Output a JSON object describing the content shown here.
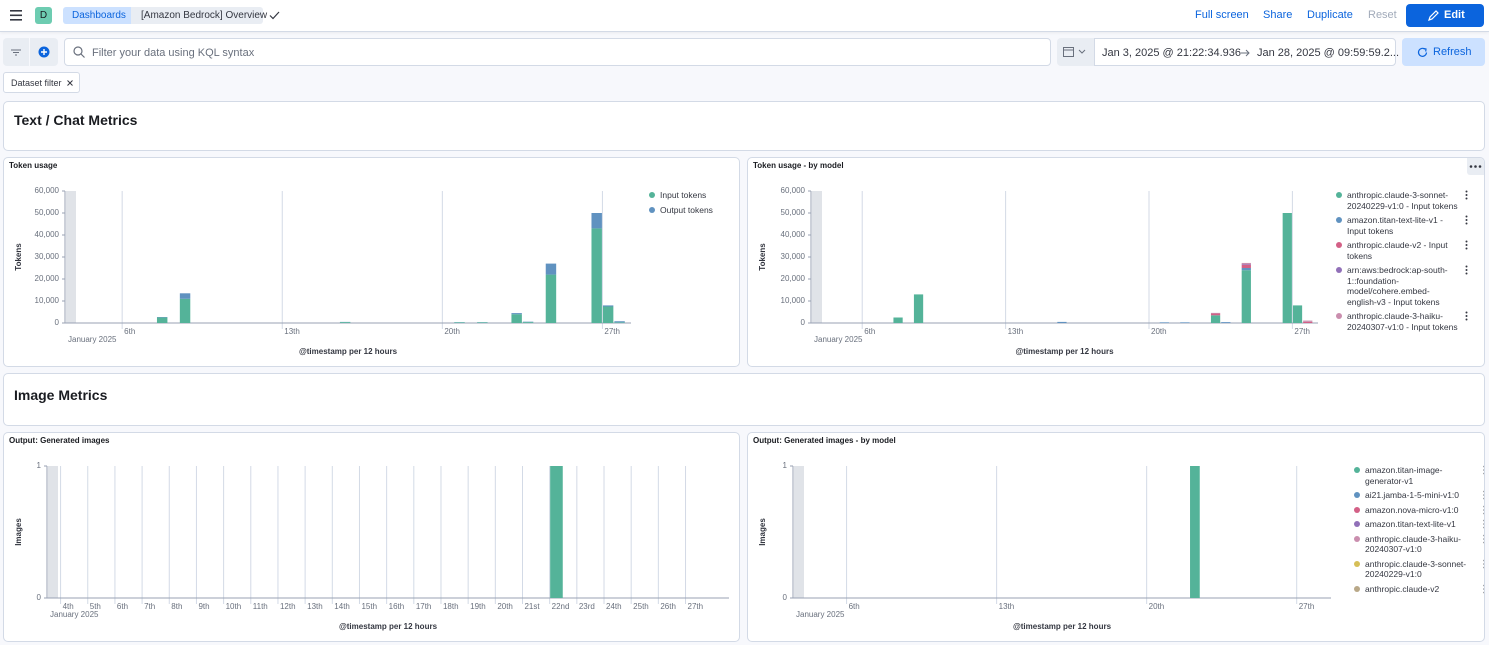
{
  "header": {
    "space_initial": "D",
    "breadcrumbs": [
      "Dashboards",
      "[Amazon Bedrock] Overview"
    ],
    "actions": [
      "Full screen",
      "Share",
      "Duplicate",
      "Reset"
    ],
    "edit": "Edit"
  },
  "query_bar": {
    "placeholder": "Filter your data using KQL syntax",
    "start": "Jan 3, 2025 @ 21:22:34.936",
    "end": "Jan 28, 2025 @ 09:59:59.2...",
    "refresh": "Refresh"
  },
  "filters": [
    "Dataset filter"
  ],
  "sections": [
    "Text / Chat Metrics",
    "Image Metrics"
  ],
  "chart_data": [
    {
      "type": "bar",
      "stacked": true,
      "title": "Token usage",
      "xlabel": "@timestamp per 12 hours",
      "ylabel": "Tokens",
      "x_caption": "January 2025",
      "x": [
        7.5,
        8.5,
        15.5,
        20.5,
        21.5,
        23,
        23.5,
        24.5,
        26.5,
        27,
        27.5
      ],
      "xlim": [
        3.5,
        28.25
      ],
      "xticks": [
        {
          "value": 6,
          "label": "6th"
        },
        {
          "value": 13,
          "label": "13th"
        },
        {
          "value": 20,
          "label": "20th"
        },
        {
          "value": 27,
          "label": "27th"
        }
      ],
      "ylim": [
        0,
        60000
      ],
      "yticks": [
        0,
        {
          "value": 10000,
          "label": "10,000"
        },
        {
          "value": 20000,
          "label": "20,000"
        },
        {
          "value": 30000,
          "label": "30,000"
        },
        {
          "value": 40000,
          "label": "40,000"
        },
        {
          "value": 50000,
          "label": "50,000"
        },
        {
          "value": 60000,
          "label": "60,000"
        }
      ],
      "legend": "right",
      "series": [
        {
          "name": "Input tokens",
          "color": "#54b399",
          "values": [
            2500,
            11000,
            400,
            300,
            300,
            4000,
            400,
            22000,
            43000,
            7500,
            300
          ]
        },
        {
          "name": "Output tokens",
          "color": "#6092c0",
          "values": [
            200,
            2500,
            100,
            100,
            100,
            500,
            200,
            5000,
            7000,
            500,
            500
          ]
        }
      ]
    },
    {
      "type": "bar",
      "stacked": true,
      "title": "Token usage - by model",
      "xlabel": "@timestamp per 12 hours",
      "ylabel": "Tokens",
      "x_caption": "January 2025",
      "x": [
        7.5,
        8.5,
        15.5,
        20.5,
        21.5,
        23,
        23.5,
        24.5,
        26.5,
        27,
        27.5
      ],
      "xlim": [
        3.5,
        28.25
      ],
      "xticks": [
        {
          "value": 6,
          "label": "6th"
        },
        {
          "value": 13,
          "label": "13th"
        },
        {
          "value": 20,
          "label": "20th"
        },
        {
          "value": 27,
          "label": "27th"
        }
      ],
      "ylim": [
        0,
        60000
      ],
      "yticks": [
        0,
        {
          "value": 10000,
          "label": "10,000"
        },
        {
          "value": 20000,
          "label": "20,000"
        },
        {
          "value": 30000,
          "label": "30,000"
        },
        {
          "value": 40000,
          "label": "40,000"
        },
        {
          "value": 50000,
          "label": "50,000"
        },
        {
          "value": 60000,
          "label": "60,000"
        }
      ],
      "legend": "right",
      "series": [
        {
          "name": "anthropic.claude-3-sonnet-20240229-v1:0 - Input tokens",
          "color": "#54b399",
          "values": [
            2500,
            13000,
            null,
            null,
            null,
            3500,
            null,
            24000,
            50000,
            8000,
            null
          ]
        },
        {
          "name": "amazon.titan-text-lite-v1 - Input tokens",
          "color": "#6092c0",
          "values": [
            null,
            null,
            500,
            300,
            300,
            null,
            400,
            1000,
            null,
            null,
            null
          ]
        },
        {
          "name": "anthropic.claude-v2 - Input tokens",
          "color": "#d36086",
          "values": [
            null,
            null,
            null,
            null,
            null,
            800,
            null,
            1500,
            null,
            null,
            500
          ]
        },
        {
          "name": "arn:aws:bedrock:ap-south-1::foundation-model/cohere.embed-english-v3 - Input tokens",
          "color": "#9170b8",
          "values": [
            null,
            null,
            null,
            null,
            null,
            null,
            null,
            300,
            null,
            null,
            null
          ]
        },
        {
          "name": "anthropic.claude-3-haiku-20240307-v1:0 - Input tokens",
          "color": "#ca8eae",
          "values": [
            null,
            null,
            null,
            null,
            null,
            300,
            null,
            500,
            null,
            null,
            600
          ]
        }
      ]
    },
    {
      "type": "bar",
      "stacked": true,
      "title": "Output: Generated images",
      "xlabel": "@timestamp per 12 hours",
      "ylabel": "Images",
      "x_caption": "January 2025",
      "x": [
        22
      ],
      "values": [
        1
      ],
      "color": "#54b399",
      "xlim": [
        3.5,
        28.6
      ],
      "xticks": [
        {
          "value": 4,
          "label": "4th"
        },
        {
          "value": 5,
          "label": "5th"
        },
        {
          "value": 6,
          "label": "6th"
        },
        {
          "value": 7,
          "label": "7th"
        },
        {
          "value": 8,
          "label": "8th"
        },
        {
          "value": 9,
          "label": "9th"
        },
        {
          "value": 10,
          "label": "10th"
        },
        {
          "value": 11,
          "label": "11th"
        },
        {
          "value": 12,
          "label": "12th"
        },
        {
          "value": 13,
          "label": "13th"
        },
        {
          "value": 14,
          "label": "14th"
        },
        {
          "value": 15,
          "label": "15th"
        },
        {
          "value": 16,
          "label": "16th"
        },
        {
          "value": 17,
          "label": "17th"
        },
        {
          "value": 18,
          "label": "18th"
        },
        {
          "value": 19,
          "label": "19th"
        },
        {
          "value": 20,
          "label": "20th"
        },
        {
          "value": 21,
          "label": "21st"
        },
        {
          "value": 22,
          "label": "22nd"
        },
        {
          "value": 23,
          "label": "23rd"
        },
        {
          "value": 24,
          "label": "24th"
        },
        {
          "value": 25,
          "label": "25th"
        },
        {
          "value": 26,
          "label": "26th"
        },
        {
          "value": 27,
          "label": "27th"
        }
      ],
      "ylim": [
        0,
        1
      ],
      "yticks": [
        0,
        1
      ]
    },
    {
      "type": "bar",
      "stacked": true,
      "title": "Output: Generated images - by model",
      "xlabel": "@timestamp per 12 hours",
      "ylabel": "Images",
      "x_caption": "January 2025",
      "x": [
        22
      ],
      "xlim": [
        3.5,
        28.6
      ],
      "xticks": [
        {
          "value": 6,
          "label": "6th"
        },
        {
          "value": 13,
          "label": "13th"
        },
        {
          "value": 20,
          "label": "20th"
        },
        {
          "value": 27,
          "label": "27th"
        }
      ],
      "ylim": [
        0,
        1
      ],
      "yticks": [
        0,
        1
      ],
      "legend": "right",
      "series": [
        {
          "name": "amazon.titan-image-generator-v1",
          "color": "#54b399",
          "values": [
            1
          ]
        },
        {
          "name": "ai21.jamba-1-5-mini-v1:0",
          "color": "#6092c0",
          "values": [
            null
          ]
        },
        {
          "name": "amazon.nova-micro-v1:0",
          "color": "#d36086",
          "values": [
            null
          ]
        },
        {
          "name": "amazon.titan-text-lite-v1",
          "color": "#9170b8",
          "values": [
            null
          ]
        },
        {
          "name": "anthropic.claude-3-haiku-20240307-v1:0",
          "color": "#ca8eae",
          "values": [
            null
          ]
        },
        {
          "name": "anthropic.claude-3-sonnet-20240229-v1:0",
          "color": "#d6bf57",
          "values": [
            null
          ]
        },
        {
          "name": "anthropic.claude-v2",
          "color": "#b9a888",
          "values": [
            null
          ]
        }
      ]
    }
  ]
}
